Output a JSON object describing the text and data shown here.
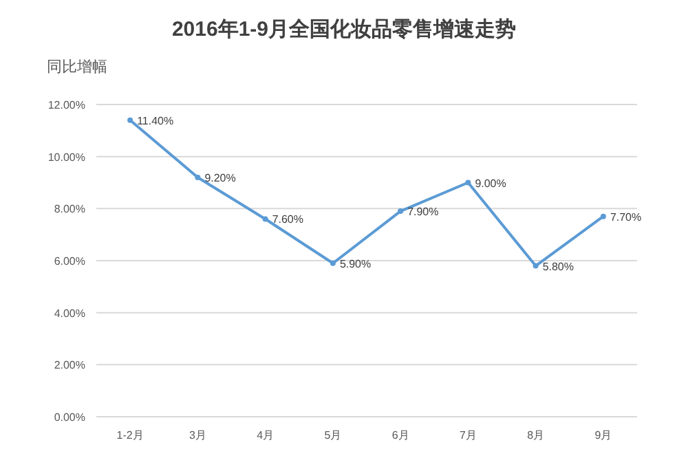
{
  "chart_data": {
    "type": "line",
    "title": "2016年1-9月全国化妆品零售增速走势",
    "ylabel": "同比增幅",
    "categories": [
      "1-2月",
      "3月",
      "4月",
      "5月",
      "6月",
      "7月",
      "8月",
      "9月"
    ],
    "series": [
      {
        "color": "#5b9bd5",
        "values": [
          11.4,
          9.2,
          7.6,
          5.9,
          7.9,
          9.0,
          5.8,
          7.7
        ]
      }
    ],
    "value_labels": [
      "11.40%",
      "9.20%",
      "7.60%",
      "5.90%",
      "7.90%",
      "9.00%",
      "5.80%",
      "7.70%"
    ],
    "ylim": [
      0,
      12
    ],
    "yticks": [
      {
        "value": 0,
        "label": "0.00%"
      },
      {
        "value": 2,
        "label": "2.00%"
      },
      {
        "value": 4,
        "label": "4.00%"
      },
      {
        "value": 6,
        "label": "6.00%"
      },
      {
        "value": 8,
        "label": "8.00%"
      },
      {
        "value": 10,
        "label": "10.00%"
      },
      {
        "value": 12,
        "label": "12.00%"
      }
    ],
    "grid": "y",
    "marker": "circle",
    "line_style": "solid"
  }
}
